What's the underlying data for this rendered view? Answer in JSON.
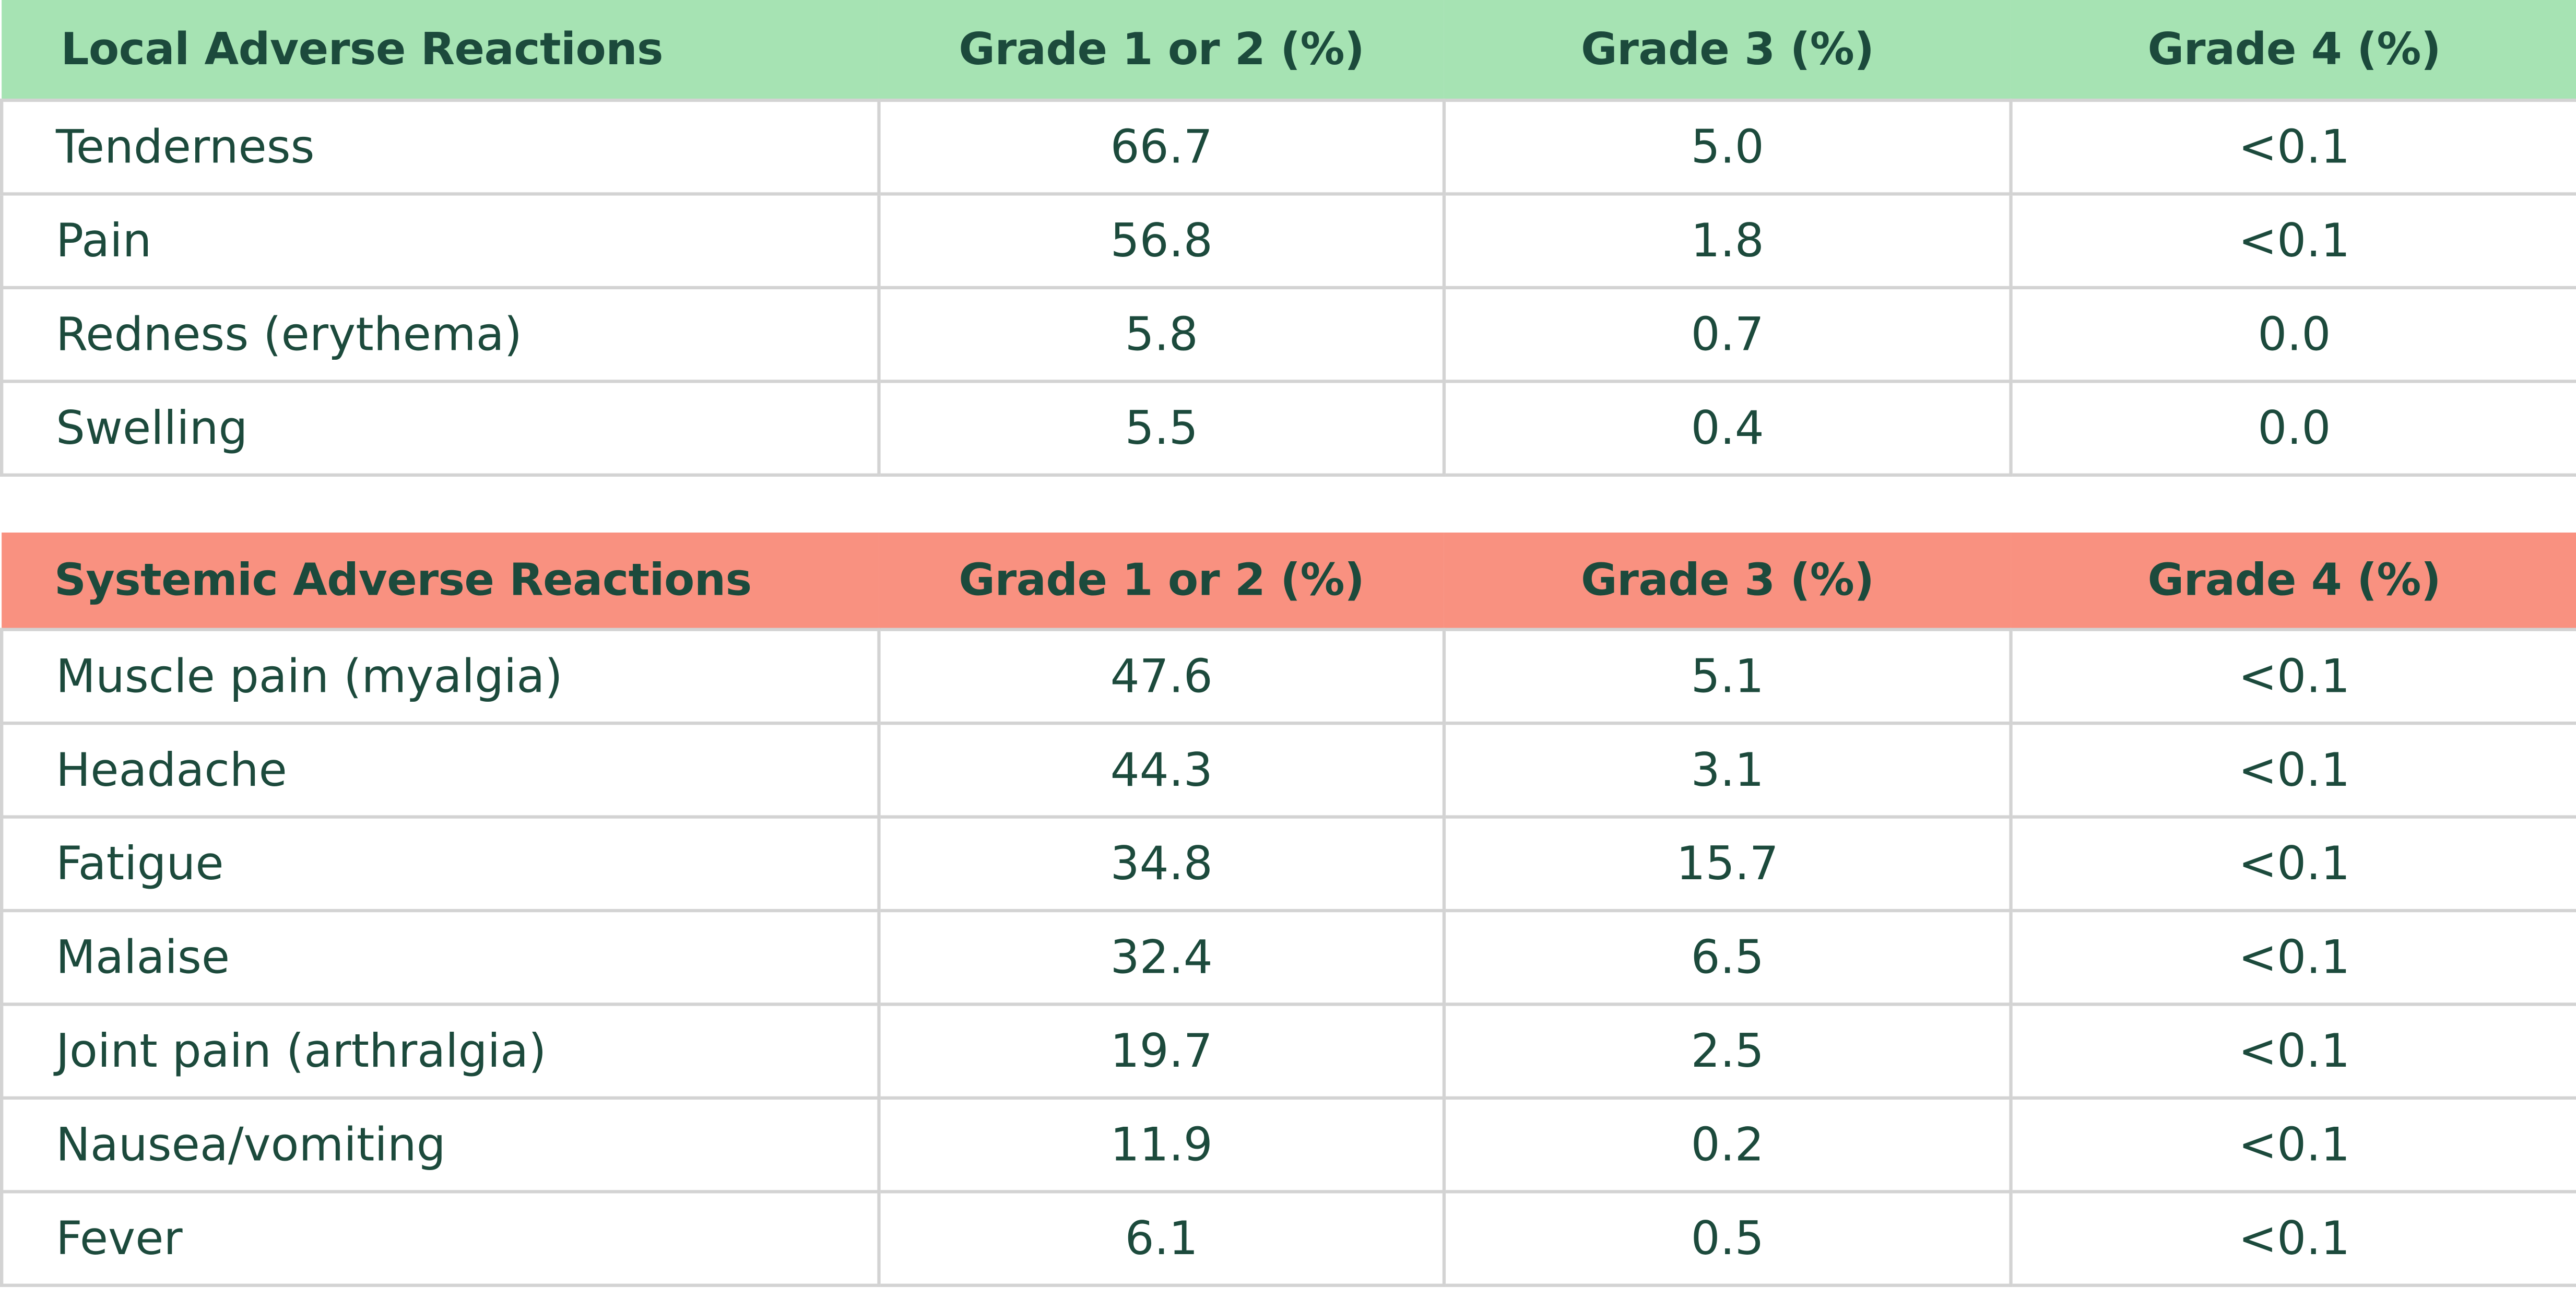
{
  "local": {
    "headers": [
      "Local Adverse Reactions",
      "Grade 1 or 2 (%)",
      "Grade 3 (%)",
      "Grade 4 (%)"
    ],
    "rows": [
      [
        "Tenderness",
        "66.7",
        "5.0",
        "<0.1"
      ],
      [
        "Pain",
        "56.8",
        "1.8",
        "<0.1"
      ],
      [
        "Redness (erythema)",
        "5.8",
        "0.7",
        "0.0"
      ],
      [
        "Swelling",
        "5.5",
        "0.4",
        "0.0"
      ]
    ],
    "header_color": "#a6e3b3"
  },
  "systemic": {
    "headers": [
      "Systemic Adverse Reactions",
      "Grade 1 or 2 (%)",
      "Grade 3 (%)",
      "Grade 4 (%)"
    ],
    "rows": [
      [
        "Muscle pain (myalgia)",
        "47.6",
        "5.1",
        "<0.1"
      ],
      [
        "Headache",
        "44.3",
        "3.1",
        "<0.1"
      ],
      [
        "Fatigue",
        "34.8",
        "15.7",
        "<0.1"
      ],
      [
        "Malaise",
        "32.4",
        "6.5",
        "<0.1"
      ],
      [
        "Joint pain (arthralgia)",
        "19.7",
        "2.5",
        "<0.1"
      ],
      [
        "Nausea/vomiting",
        "11.9",
        "0.2",
        "<0.1"
      ],
      [
        "Fever",
        "6.1",
        "0.5",
        "<0.1"
      ]
    ],
    "header_color": "#f99180"
  },
  "text_color": "#1c4a3c"
}
